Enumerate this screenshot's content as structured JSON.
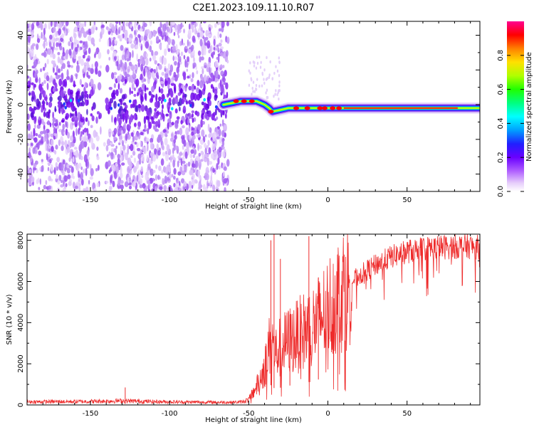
{
  "title": "C2E1.2023.109.11.10.R07",
  "colors": {
    "snr_line": "#ee2b2b",
    "spectrogram_low": "#7a00ff",
    "spectrogram_mid": "#00e000",
    "spectrogram_high": "#ff0000"
  },
  "chart_data": [
    {
      "type": "heatmap",
      "name": "spectrogram",
      "xlabel": "Height of straight line (km)",
      "ylabel": "Frequency (Hz)",
      "xlim": [
        -190,
        96
      ],
      "ylim": [
        -50,
        48
      ],
      "x_ticks": [
        -150,
        -100,
        -50,
        0,
        50
      ],
      "y_ticks": [
        -40,
        -20,
        0,
        20,
        40
      ],
      "colorbar": {
        "label": "Normalized spectral amplitude",
        "range": [
          0.0,
          1.0
        ],
        "ticks": [
          "0.0",
          "0.2",
          "0.4",
          "0.6",
          "0.8"
        ]
      },
      "ridge": {
        "x": [
          -66,
          -60,
          -55,
          -50,
          -45,
          -40,
          -37,
          -35,
          -30,
          -25,
          -20,
          -10,
          0,
          10,
          20,
          40,
          60,
          80,
          96
        ],
        "frequency": [
          0,
          1,
          2,
          2,
          2,
          0,
          -2,
          -4,
          -3,
          -2,
          -2,
          -2,
          -2,
          -2,
          -2,
          -2,
          -2,
          -2,
          -2
        ]
      }
    },
    {
      "type": "line",
      "name": "snr",
      "xlabel": "Height of straight line (km)",
      "ylabel": "SNR (10 * v/v)",
      "xlim": [
        -190,
        96
      ],
      "ylim": [
        0,
        8300
      ],
      "x_ticks": [
        -150,
        -100,
        -50,
        0,
        50
      ],
      "y_ticks": [
        0,
        2000,
        4000,
        6000,
        8000
      ],
      "envelope": {
        "x": [
          -190,
          -170,
          -150,
          -130,
          -110,
          -90,
          -70,
          -60,
          -55,
          -50,
          -45,
          -40,
          -36,
          -33,
          -30,
          -25,
          -20,
          -15,
          -10,
          -5,
          0,
          5,
          10,
          20,
          30,
          40,
          50,
          60,
          70,
          80,
          90,
          96
        ],
        "y": [
          150,
          160,
          170,
          200,
          160,
          140,
          130,
          130,
          140,
          250,
          900,
          1800,
          3200,
          2500,
          2800,
          3100,
          3300,
          3600,
          3800,
          4200,
          4700,
          5200,
          5700,
          6300,
          6800,
          7200,
          7450,
          7600,
          7650,
          7700,
          7700,
          7650
        ]
      },
      "spikes": [
        {
          "x": -128,
          "y": 850
        },
        {
          "x": -36,
          "y": 8000
        },
        {
          "x": -34,
          "y": 8300
        },
        {
          "x": -30,
          "y": 7100
        },
        {
          "x": -24,
          "y": 4400
        },
        {
          "x": -12,
          "y": 8200
        },
        {
          "x": -6,
          "y": 6200
        }
      ]
    }
  ]
}
